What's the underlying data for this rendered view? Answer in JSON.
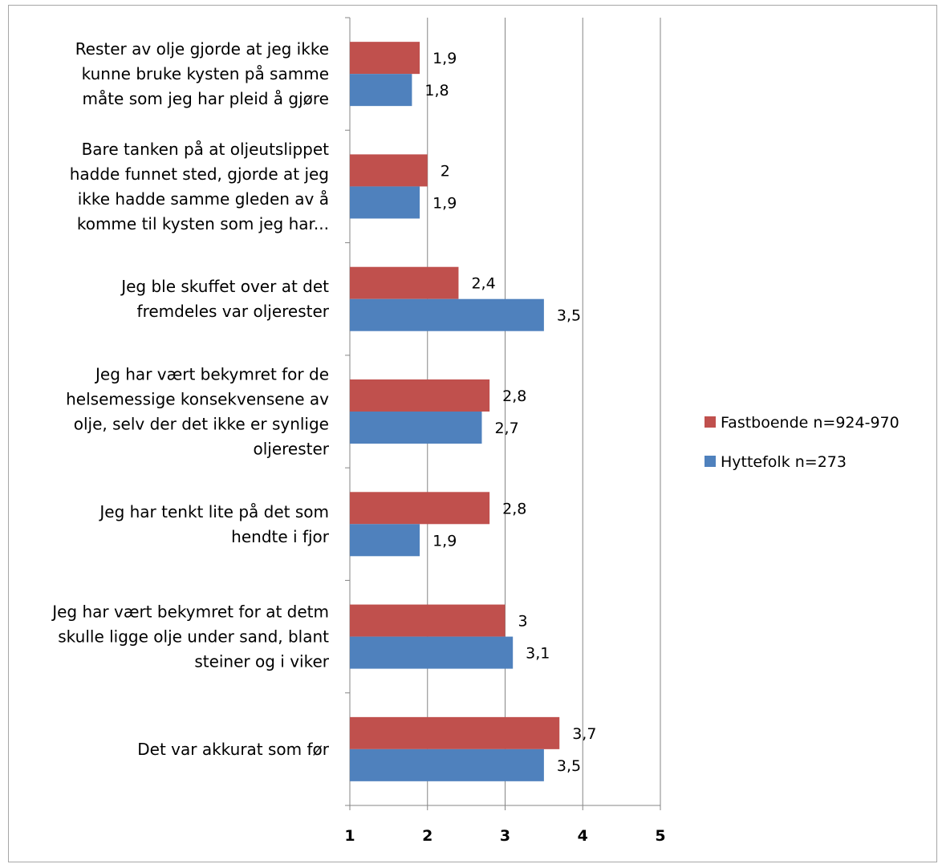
{
  "chart_data": {
    "type": "bar",
    "orientation": "horizontal",
    "categories": [
      [
        "Rester av olje gjorde at jeg ikke",
        "kunne bruke kysten på samme",
        "måte som jeg har pleid å gjøre"
      ],
      [
        "Bare tanken på at oljeutslippet",
        "hadde funnet sted, gjorde at jeg",
        "ikke hadde samme gleden av å",
        "komme til kysten som jeg har..."
      ],
      [
        "Jeg ble skuffet over at det",
        "fremdeles var oljerester"
      ],
      [
        "Jeg har vært bekymret for de",
        "helsemessige konsekvensene av",
        "olje, selv der det ikke er synlige",
        "oljerester"
      ],
      [
        "Jeg har tenkt lite på det som",
        "hendte i fjor"
      ],
      [
        "Jeg har vært bekymret for at detm",
        "skulle ligge olje under sand, blant",
        "steiner og i viker"
      ],
      [
        "Det var akkurat som før"
      ]
    ],
    "series": [
      {
        "name": "Fastboende n=924-970",
        "color": "#c0504d",
        "values": [
          1.9,
          2,
          2.4,
          2.8,
          2.8,
          3,
          3.7
        ],
        "labels": [
          "1,9",
          "2",
          "2,4",
          "2,8",
          "2,8",
          "3",
          "3,7"
        ]
      },
      {
        "name": "Hyttefolk n=273",
        "color": "#4f81bd",
        "values": [
          1.8,
          1.9,
          3.5,
          2.7,
          1.9,
          3.1,
          3.5
        ],
        "labels": [
          "1,8",
          "1,9",
          "3,5",
          "2,7",
          "1,9",
          "3,1",
          "3,5"
        ]
      }
    ],
    "xlim": [
      1,
      5
    ],
    "xticks": [
      "1",
      "2",
      "3",
      "4",
      "5"
    ],
    "grid": "vertical",
    "legend_position": "right",
    "title": "",
    "xlabel": "",
    "ylabel": ""
  }
}
